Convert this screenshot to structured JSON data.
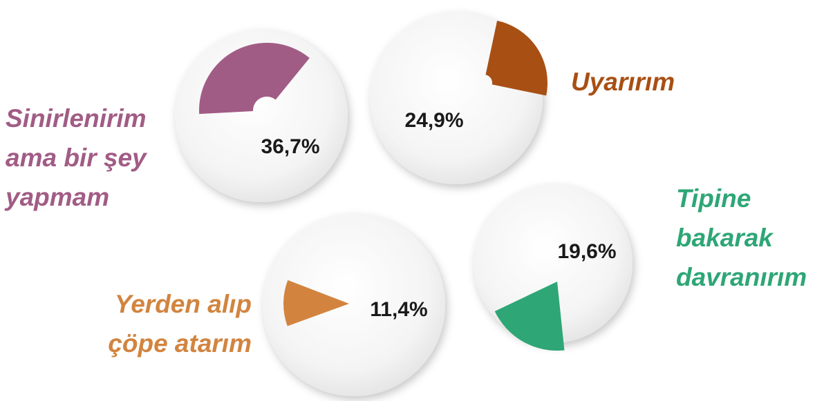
{
  "chart_data": {
    "type": "pie",
    "categories": [
      "Sinirlenirim ama bir şey yapmam",
      "Uyarırım",
      "Yerden alıp çöpe atarım",
      "Tipine bakarak davranırım"
    ],
    "values": [
      36.7,
      24.9,
      11.4,
      19.6
    ],
    "value_labels": [
      "36,7%",
      "24,9%",
      "11,4%",
      "19,6%"
    ],
    "colors": [
      "#a15c85",
      "#a84f14",
      "#d2843f",
      "#2ea676"
    ]
  }
}
